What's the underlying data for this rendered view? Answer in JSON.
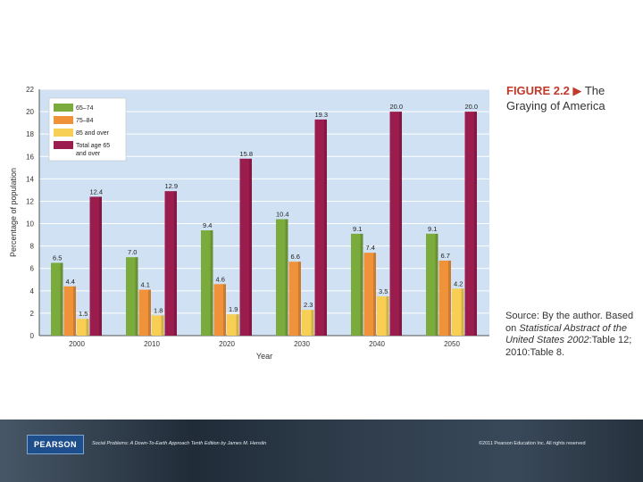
{
  "chart_data": {
    "type": "bar",
    "title": "FIGURE 2.2 ▶ The Graying of America",
    "xlabel": "Year",
    "ylabel": "Percentage of population",
    "ylim": [
      0,
      22
    ],
    "yticks": [
      0,
      2,
      4,
      6,
      8,
      10,
      12,
      14,
      16,
      18,
      20,
      22
    ],
    "grid": true,
    "legend_position": "top-left",
    "categories": [
      "2000",
      "2010",
      "2020",
      "2030",
      "2040",
      "2050"
    ],
    "series": [
      {
        "name": "65–74",
        "color": "#7bab3c",
        "values": [
          6.5,
          7.0,
          9.4,
          10.4,
          9.1,
          9.1
        ],
        "labels": [
          "6.5",
          "7.0",
          "9.4",
          "10.4",
          "9.1",
          "9.1"
        ]
      },
      {
        "name": "75–84",
        "color": "#f0923a",
        "values": [
          4.4,
          4.1,
          4.6,
          6.6,
          7.4,
          6.7
        ],
        "labels": [
          "4.4",
          "4.1",
          "4.6",
          "6.6",
          "7.4",
          "6.7"
        ]
      },
      {
        "name": "85 and over",
        "color": "#f7cf55",
        "values": [
          1.5,
          1.8,
          1.9,
          2.3,
          3.5,
          4.2
        ],
        "labels": [
          "1.5",
          "1.8",
          "1.9",
          "2.3",
          "3.5",
          "4.2"
        ]
      },
      {
        "name": "Total age 65 and over",
        "color": "#9b1d4e",
        "values": [
          12.4,
          12.9,
          15.8,
          19.3,
          20.0,
          20.0
        ],
        "labels": [
          "12.4",
          "12.9",
          "15.8",
          "19.3",
          "20.0",
          "20.0"
        ]
      }
    ]
  },
  "caption": {
    "figure_label": "FIGURE 2.2",
    "arrow": "▶",
    "title_rest": "The Graying of America",
    "source_prefix": "Source: By the author. Based on",
    "source_italic": "Statistical Abstract of the United States 2002",
    "source_suffix": ":Table 12; 2010:Table 8."
  },
  "footer": {
    "logo": "PEARSON",
    "book": "Social Problems: A Down-To-Earth Approach   Tenth Edition by James M. Henslin",
    "copyright": "©2011 Pearson Education Inc.   All rights reserved"
  },
  "colors": {
    "plot_bg": "#cfe1f2",
    "grid": "#ffffff",
    "footer_bg": "#2e3b4a",
    "title_accent": "#c0392b"
  }
}
